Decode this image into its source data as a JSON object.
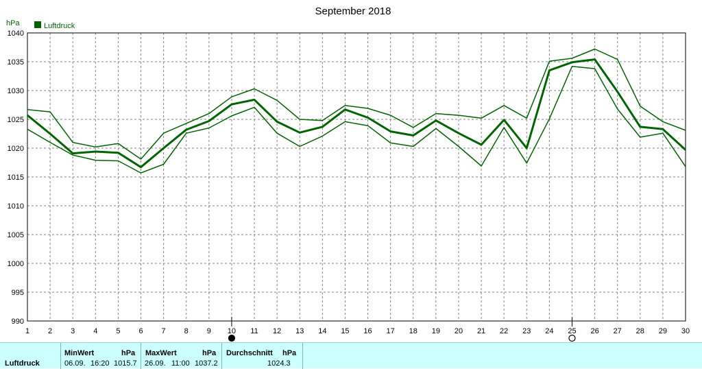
{
  "chart_data": {
    "type": "line",
    "title": "September 2018",
    "ylabel": "hPa",
    "ylim": [
      990,
      1040
    ],
    "y_ticks": [
      "990",
      "995",
      "1000",
      "1005",
      "1010",
      "1015",
      "1020",
      "1025",
      "1030",
      "1035",
      "1040"
    ],
    "x_ticks": [
      "1",
      "2",
      "3",
      "4",
      "5",
      "6",
      "7",
      "8",
      "9",
      "10",
      "11",
      "12",
      "13",
      "14",
      "15",
      "16",
      "17",
      "18",
      "19",
      "20",
      "21",
      "22",
      "23",
      "24",
      "25",
      "26",
      "27",
      "28",
      "29",
      "30"
    ],
    "grid": true,
    "legend": {
      "position": "top-left",
      "label": "Luftdruck",
      "color": "#006400"
    },
    "series": [
      {
        "role": "max",
        "values": [
          1026.7,
          1026.3,
          1021.0,
          1020.2,
          1020.8,
          1018.1,
          1022.6,
          1024.3,
          1026.0,
          1028.9,
          1030.3,
          1028.3,
          1025.0,
          1024.8,
          1027.4,
          1026.9,
          1025.7,
          1023.6,
          1026.0,
          1025.7,
          1025.2,
          1027.4,
          1025.2,
          1035.1,
          1035.6,
          1037.2,
          1035.4,
          1027.3,
          1024.6,
          1023.1
        ]
      },
      {
        "role": "avg",
        "values": [
          1025.7,
          1022.5,
          1019.1,
          1019.4,
          1019.2,
          1016.7,
          1020.0,
          1023.2,
          1024.7,
          1027.6,
          1028.4,
          1024.6,
          1022.7,
          1023.7,
          1026.7,
          1025.3,
          1022.9,
          1022.2,
          1024.8,
          1022.6,
          1020.6,
          1024.9,
          1020.0,
          1033.5,
          1034.9,
          1035.4,
          1029.8,
          1023.7,
          1023.3,
          1019.7
        ]
      },
      {
        "role": "min",
        "values": [
          1023.3,
          1021.0,
          1018.8,
          1017.9,
          1017.8,
          1015.7,
          1017.2,
          1022.6,
          1023.5,
          1025.6,
          1027.1,
          1022.6,
          1020.3,
          1022.1,
          1024.6,
          1023.9,
          1020.9,
          1020.3,
          1023.4,
          1020.3,
          1016.9,
          1023.6,
          1017.4,
          1025.1,
          1034.2,
          1033.8,
          1026.8,
          1021.9,
          1022.6,
          1016.8
        ]
      }
    ],
    "moon_markers": [
      {
        "day": 10,
        "phase": "new",
        "symbol": "●"
      },
      {
        "day": 25,
        "phase": "full",
        "symbol": "○"
      }
    ]
  },
  "stats": {
    "row_label": "Luftdruck",
    "min": {
      "header": "MinWert",
      "unit": "hPa",
      "date": "06.09.",
      "time": "16:20",
      "value": "1015.7"
    },
    "max": {
      "header": "MaxWert",
      "unit": "hPa",
      "date": "26.09.",
      "time": "11:00",
      "value": "1037.2"
    },
    "avg": {
      "header": "Durchschnitt",
      "unit": "hPa",
      "value": "1024.3"
    }
  }
}
